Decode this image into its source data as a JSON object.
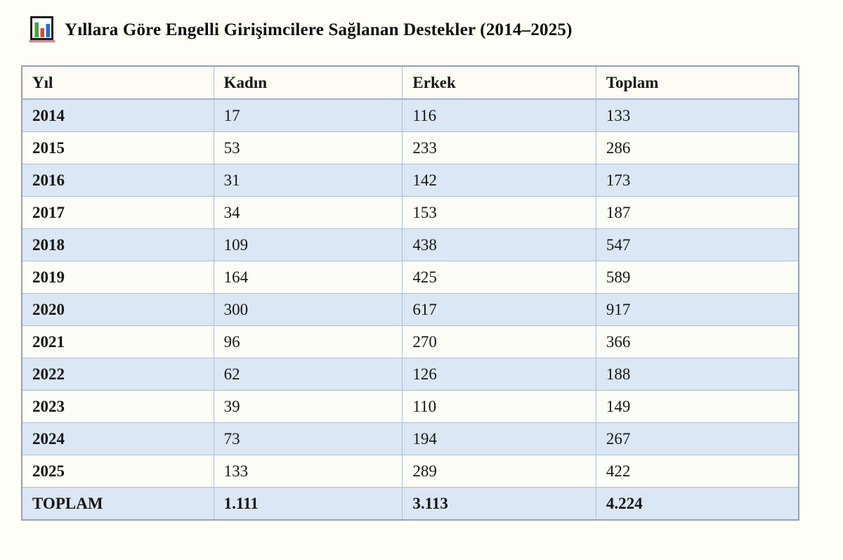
{
  "page": {
    "title": "Yıllara Göre Engelli Girişimcilere Sağlanan Destekler (2014–2025)"
  },
  "icons": {
    "title_icon": "bar-chart-icon",
    "bar_colors": {
      "green": "#3aa83a",
      "red": "#e04438",
      "blue": "#2170cc",
      "base": "#c993a3"
    }
  },
  "colors": {
    "page_background": "#fffef6",
    "row_blue": "#dbe7f4",
    "row_white": "#fdfdf7",
    "header_background": "#fcfbf4",
    "border": "#a9c0d6",
    "outer_border": "#93a2b2"
  },
  "table": {
    "columns": [
      "Yıl",
      "Kadın",
      "Erkek",
      "Toplam"
    ],
    "rows": [
      [
        "2014",
        "17",
        "116",
        "133"
      ],
      [
        "2015",
        "53",
        "233",
        "286"
      ],
      [
        "2016",
        "31",
        "142",
        "173"
      ],
      [
        "2017",
        "34",
        "153",
        "187"
      ],
      [
        "2018",
        "109",
        "438",
        "547"
      ],
      [
        "2019",
        "164",
        "425",
        "589"
      ],
      [
        "2020",
        "300",
        "617",
        "917"
      ],
      [
        "2021",
        "96",
        "270",
        "366"
      ],
      [
        "2022",
        "62",
        "126",
        "188"
      ],
      [
        "2023",
        "39",
        "110",
        "149"
      ],
      [
        "2024",
        "73",
        "194",
        "267"
      ],
      [
        "2025",
        "133",
        "289",
        "422"
      ]
    ],
    "total_row": [
      "TOPLAM",
      "1.111",
      "3.113",
      "4.224"
    ]
  },
  "chart_data": {
    "type": "table",
    "title": "Yıllara Göre Engelli Girişimcilere Sağlanan Destekler (2014–2025)",
    "categories": [
      "2014",
      "2015",
      "2016",
      "2017",
      "2018",
      "2019",
      "2020",
      "2021",
      "2022",
      "2023",
      "2024",
      "2025"
    ],
    "series": [
      {
        "name": "Kadın",
        "values": [
          17,
          53,
          31,
          34,
          109,
          164,
          300,
          96,
          62,
          39,
          73,
          133
        ]
      },
      {
        "name": "Erkek",
        "values": [
          116,
          233,
          142,
          153,
          438,
          425,
          617,
          270,
          126,
          110,
          194,
          289
        ]
      },
      {
        "name": "Toplam",
        "values": [
          133,
          286,
          173,
          187,
          547,
          589,
          917,
          366,
          188,
          149,
          267,
          422
        ]
      }
    ],
    "totals": {
      "Kadın": 1111,
      "Erkek": 3113,
      "Toplam": 4224
    }
  }
}
